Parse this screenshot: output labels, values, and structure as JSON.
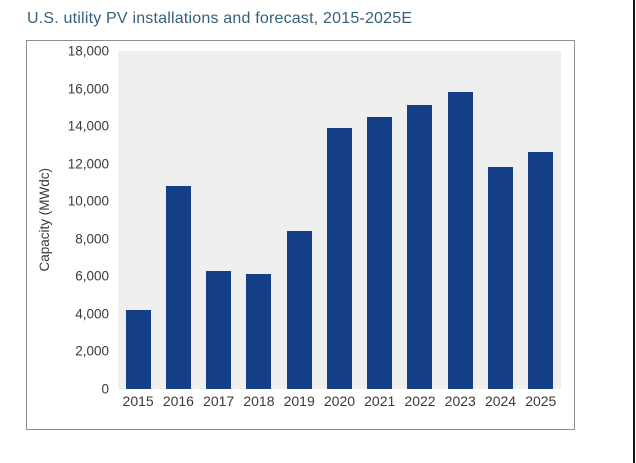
{
  "title": "U.S. utility PV installations and forecast, 2015-2025E",
  "chart_data": {
    "type": "bar",
    "title": "U.S. utility PV installations and forecast, 2015-2025E",
    "categories": [
      "2015",
      "2016",
      "2017",
      "2018",
      "2019",
      "2020",
      "2021",
      "2022",
      "2023",
      "2024",
      "2025"
    ],
    "values": [
      4200,
      10800,
      6300,
      6100,
      8400,
      13900,
      14500,
      15100,
      15800,
      11800,
      12600
    ],
    "xlabel": "",
    "ylabel": "Capacity (MWdc)",
    "ylim": [
      0,
      18000
    ],
    "ytick_step": 2000,
    "yticks": [
      "0",
      "2,000",
      "4,000",
      "6,000",
      "8,000",
      "10,000",
      "12,000",
      "14,000",
      "16,000",
      "18,000"
    ],
    "grid": false,
    "legend": "none"
  },
  "colors": {
    "bar": "#143E86",
    "title_text": "#33607C",
    "axis_text": "#3A3A3A",
    "plot_background": "#EFEFEF",
    "chart_border": "#8F8F8F",
    "page_background": "#FFFFFF",
    "edge_line": "#141414"
  }
}
